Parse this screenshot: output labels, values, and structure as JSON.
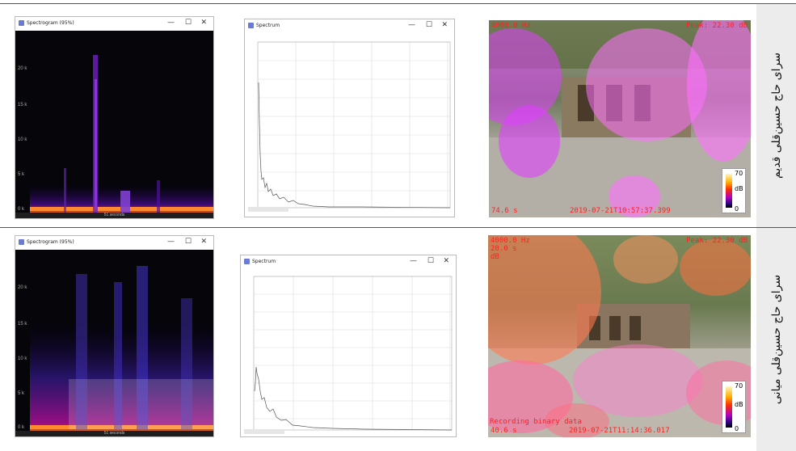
{
  "rows": [
    {
      "label": "سرای حاج حسین‌قلی قدیم",
      "spectrogram": {
        "title": "Spectrogram (95%)",
        "yticks": [
          "20 k",
          "15 k",
          "10 k",
          "5 k",
          "0 k"
        ],
        "footer": "51 seconds"
      },
      "spectrum": {
        "title": "Spectrum"
      },
      "heatmap": {
        "overlay_tl": "4000.0 Hz",
        "overlay_tr": "Peak: 22.30 dB",
        "elapsed": "74.6 s",
        "timestamp": "2019-07-21T10:57:37.399",
        "cbar_max": "70",
        "cbar_unit": "dB",
        "cbar_min": "0"
      }
    },
    {
      "label": "سرای حاج حسین‌قلی میانی",
      "spectrogram": {
        "title": "Spectrogram (95%)",
        "yticks": [
          "20 k",
          "15 k",
          "10 k",
          "5 k",
          "0 k"
        ],
        "footer": "51 seconds"
      },
      "spectrum": {
        "title": "Spectrum"
      },
      "heatmap": {
        "overlay_tl": "4000.0 Hz",
        "overlay_tl2": "20.0 s",
        "overlay_tl3": "dB",
        "overlay_tr": "Peak: 22.30 dB",
        "status": "Recording binary data",
        "elapsed": "40.6 s",
        "timestamp": "2019-07-21T11:14:36.017",
        "cbar_max": "70",
        "cbar_unit": "dB",
        "cbar_min": "0"
      }
    }
  ],
  "window_controls": {
    "minimize": "—",
    "maximize": "☐",
    "close": "✕"
  }
}
